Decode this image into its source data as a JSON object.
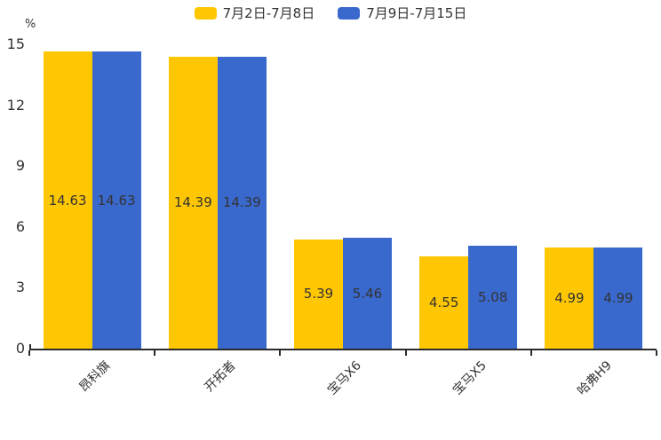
{
  "chart_data": {
    "type": "bar",
    "title": "",
    "unit": "%",
    "categories": [
      "昂科旗",
      "开拓者",
      "宝马X6",
      "宝马X5",
      "哈弗H9"
    ],
    "series": [
      {
        "name": "7月2日-7月8日",
        "color": "#FFC702",
        "values": [
          14.63,
          14.39,
          5.39,
          4.55,
          4.99
        ]
      },
      {
        "name": "7月9日-7月15日",
        "color": "#3A69CD",
        "values": [
          14.63,
          14.39,
          5.46,
          5.08,
          4.99
        ]
      }
    ],
    "xlabel": "",
    "ylabel": "%",
    "ylim": [
      0,
      15
    ],
    "yticks": [
      0,
      3,
      6,
      9,
      12,
      15
    ],
    "grid": false,
    "legend_position": "top",
    "value_labels": "inside-center",
    "value_label_format": "2dp",
    "text_color": "#333333",
    "axis_color": "#2b2b2b",
    "background_color": "#ffffff"
  }
}
